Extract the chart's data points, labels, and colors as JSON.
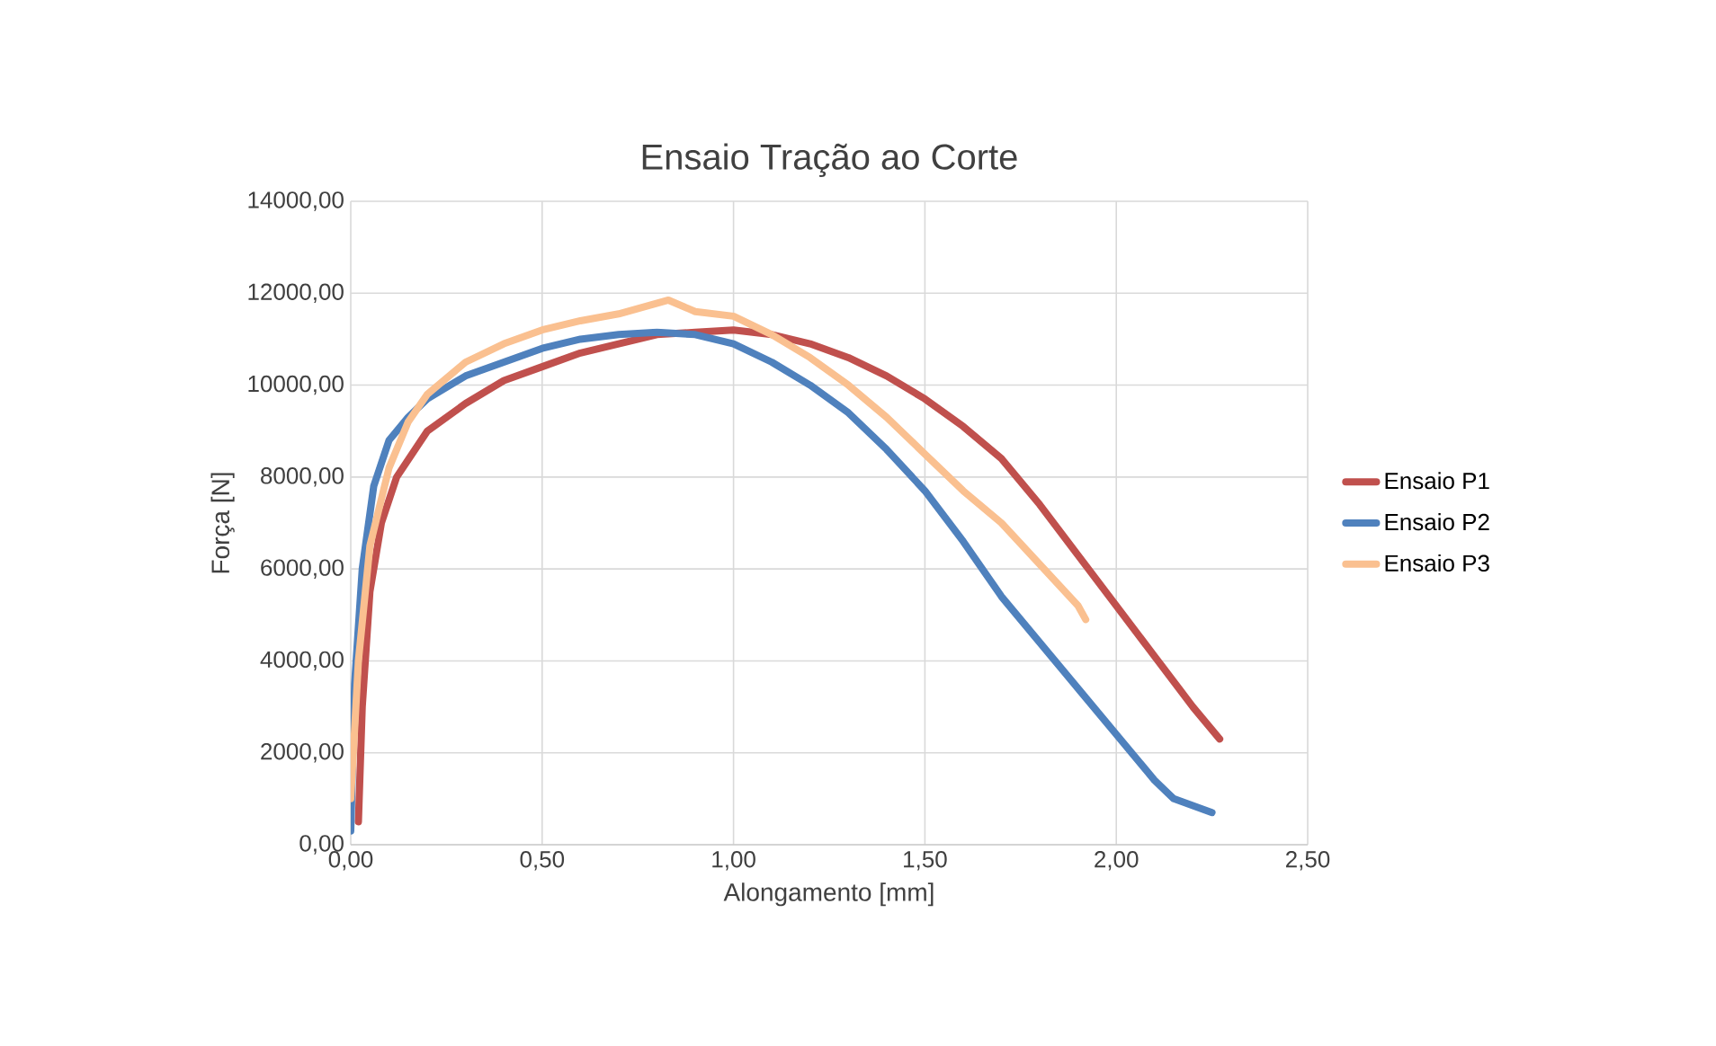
{
  "chart_data": {
    "type": "line",
    "title": "Ensaio Tração ao Corte",
    "xlabel": "Alongamento [mm]",
    "ylabel": "Força [N]",
    "xlim": [
      0,
      2.5
    ],
    "ylim": [
      0,
      14000
    ],
    "xticks": [
      {
        "value": 0,
        "label": "0,00"
      },
      {
        "value": 0.5,
        "label": "0,50"
      },
      {
        "value": 1,
        "label": "1,00"
      },
      {
        "value": 1.5,
        "label": "1,50"
      },
      {
        "value": 2,
        "label": "2,00"
      },
      {
        "value": 2.5,
        "label": "2,50"
      }
    ],
    "yticks": [
      {
        "value": 0,
        "label": "0,00"
      },
      {
        "value": 2000,
        "label": "2000,00"
      },
      {
        "value": 4000,
        "label": "4000,00"
      },
      {
        "value": 6000,
        "label": "6000,00"
      },
      {
        "value": 8000,
        "label": "8000,00"
      },
      {
        "value": 10000,
        "label": "10000,00"
      },
      {
        "value": 12000,
        "label": "12000,00"
      },
      {
        "value": 14000,
        "label": "14000,00"
      }
    ],
    "grid": true,
    "legend": "right",
    "marker": "none",
    "line_style": "solid",
    "series": [
      {
        "name": "Ensaio P1",
        "color": "#c0504d",
        "x": [
          0.02,
          0.03,
          0.05,
          0.08,
          0.12,
          0.2,
          0.3,
          0.4,
          0.5,
          0.6,
          0.7,
          0.8,
          0.9,
          1.0,
          1.1,
          1.2,
          1.3,
          1.4,
          1.5,
          1.6,
          1.7,
          1.8,
          1.9,
          2.0,
          2.1,
          2.2,
          2.27
        ],
        "values": [
          500,
          3000,
          5500,
          7000,
          8000,
          9000,
          9600,
          10100,
          10400,
          10700,
          10900,
          11100,
          11150,
          11200,
          11100,
          10900,
          10600,
          10200,
          9700,
          9100,
          8400,
          7400,
          6300,
          5200,
          4100,
          3000,
          2300
        ]
      },
      {
        "name": "Ensaio P2",
        "color": "#4f81bd",
        "x": [
          0,
          0.01,
          0.03,
          0.06,
          0.1,
          0.15,
          0.2,
          0.3,
          0.4,
          0.5,
          0.6,
          0.7,
          0.8,
          0.9,
          1.0,
          1.1,
          1.2,
          1.3,
          1.4,
          1.5,
          1.6,
          1.7,
          1.8,
          1.9,
          2.0,
          2.1,
          2.15,
          2.25
        ],
        "values": [
          300,
          3500,
          6000,
          7800,
          8800,
          9300,
          9700,
          10200,
          10500,
          10800,
          11000,
          11100,
          11150,
          11100,
          10900,
          10500,
          10000,
          9400,
          8600,
          7700,
          6600,
          5400,
          4400,
          3400,
          2400,
          1400,
          1000,
          700
        ]
      },
      {
        "name": "Ensaio P3",
        "color": "#fac090",
        "x": [
          0,
          0.02,
          0.05,
          0.1,
          0.15,
          0.2,
          0.3,
          0.4,
          0.5,
          0.6,
          0.7,
          0.83,
          0.9,
          1.0,
          1.1,
          1.2,
          1.3,
          1.4,
          1.5,
          1.6,
          1.7,
          1.8,
          1.9,
          1.92
        ],
        "values": [
          1000,
          4000,
          6500,
          8200,
          9200,
          9800,
          10500,
          10900,
          11200,
          11400,
          11550,
          11850,
          11600,
          11500,
          11100,
          10600,
          10000,
          9300,
          8500,
          7700,
          7000,
          6100,
          5200,
          4900
        ]
      }
    ]
  }
}
